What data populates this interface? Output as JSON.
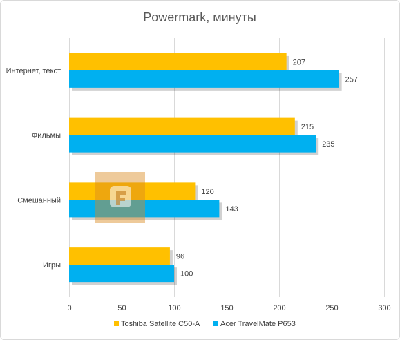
{
  "chart_data": {
    "type": "bar",
    "orientation": "horizontal",
    "title": "Powermark, минуты",
    "categories": [
      "Интернет, текст",
      "Фильмы",
      "Смешанный",
      "Игры"
    ],
    "series": [
      {
        "name": "Toshiba Satellite C50-A",
        "values": [
          207,
          215,
          120,
          96
        ],
        "color": "#FFC000"
      },
      {
        "name": "Acer TravelMate P653",
        "values": [
          257,
          235,
          143,
          100
        ],
        "color": "#00B0F0"
      }
    ],
    "xlim": [
      0,
      300
    ],
    "xticks": [
      "0",
      "50",
      "100",
      "150",
      "200",
      "250",
      "300"
    ],
    "grid": true,
    "legend_position": "bottom"
  }
}
